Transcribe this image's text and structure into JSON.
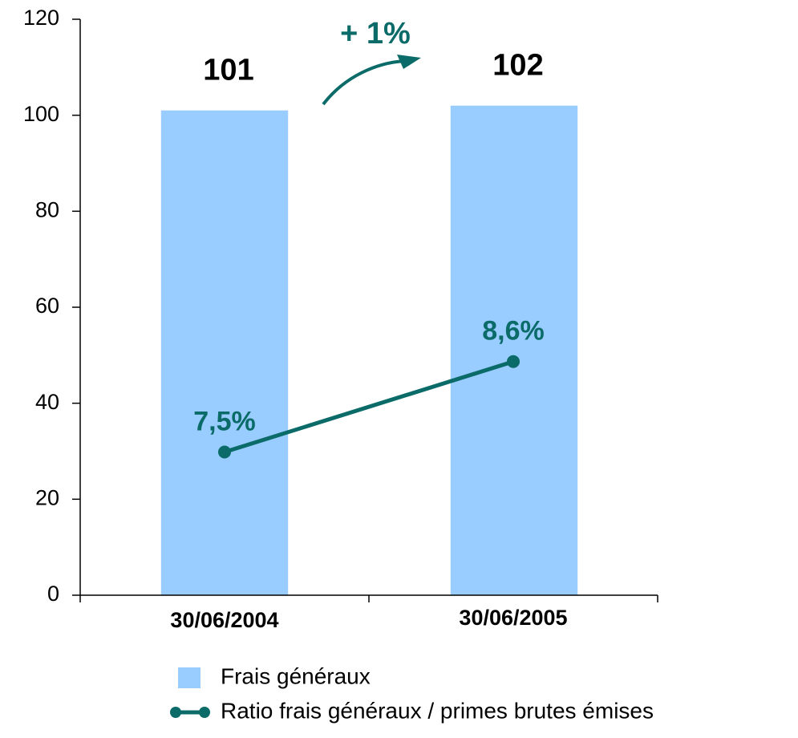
{
  "chart_data": {
    "type": "bar",
    "categories": [
      "30/06/2004",
      "30/06/2005"
    ],
    "series": [
      {
        "name": "Frais généraux",
        "color": "#99ccff",
        "values": [
          101,
          102
        ]
      },
      {
        "name": "Ratio frais généraux / primes brutes émises",
        "color": "#0b6b68",
        "type": "line",
        "axis": "y2",
        "values": [
          7.5,
          8.6
        ],
        "value_labels": [
          "7,5%",
          "8,6%"
        ]
      }
    ],
    "ylim": [
      0,
      120
    ],
    "yticks": [
      0,
      20,
      40,
      60,
      80,
      100,
      120
    ],
    "y2lim": [
      5.76,
      12.76
    ],
    "annotations": [
      "+ 1%"
    ],
    "grid": false,
    "legend": "bottom"
  }
}
